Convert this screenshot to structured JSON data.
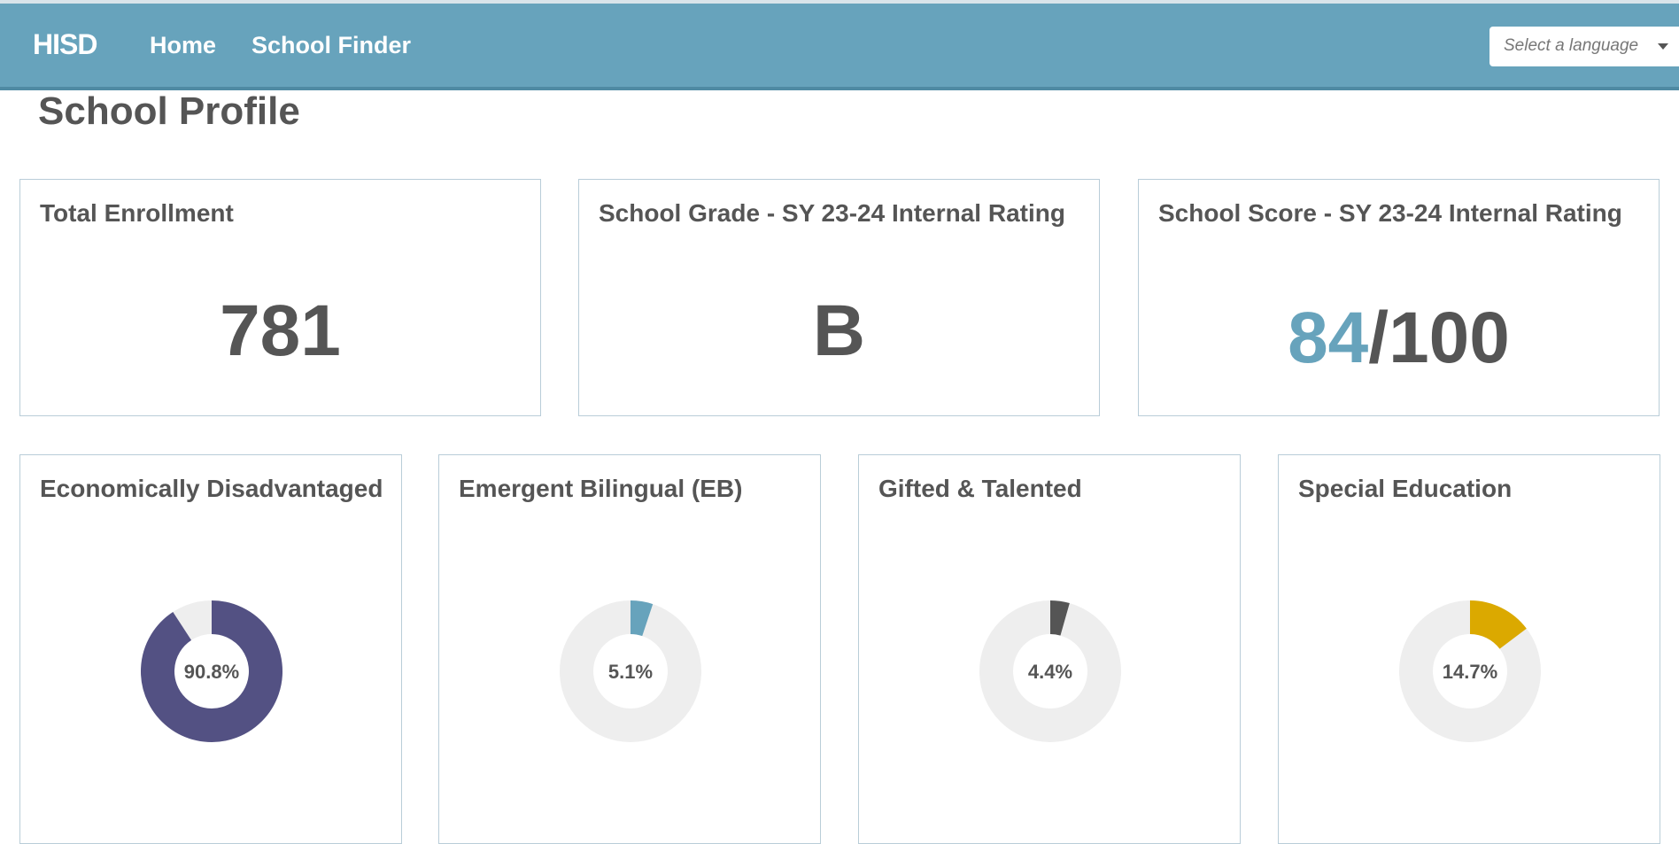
{
  "nav": {
    "brand": "HISD",
    "links": [
      "Home",
      "School Finder"
    ],
    "language_placeholder": "Select a language"
  },
  "page_title": "School Profile",
  "summary_cards": {
    "enrollment": {
      "title": "Total Enrollment",
      "value": "781"
    },
    "grade": {
      "title": "School Grade - SY 23-24 Internal Rating",
      "value": "B"
    },
    "score": {
      "title": "School Score - SY 23-24 Internal Rating",
      "value": "84",
      "max": "/100"
    }
  },
  "demographics": [
    {
      "title": "Economically Disadvantaged",
      "label": "90.8%",
      "percent": 90.8,
      "color": "#535183"
    },
    {
      "title": "Emergent Bilingual (EB)",
      "label": "5.1%",
      "percent": 5.1,
      "color": "#67a3bc"
    },
    {
      "title": "Gifted & Talented",
      "label": "4.4%",
      "percent": 4.4,
      "color": "#555555"
    },
    {
      "title": "Special Education",
      "label": "14.7%",
      "percent": 14.7,
      "color": "#dba900"
    }
  ],
  "colors": {
    "navbar": "#67a3bc",
    "accent": "#67a3bc",
    "track": "#eeeeee",
    "text": "#555555"
  }
}
